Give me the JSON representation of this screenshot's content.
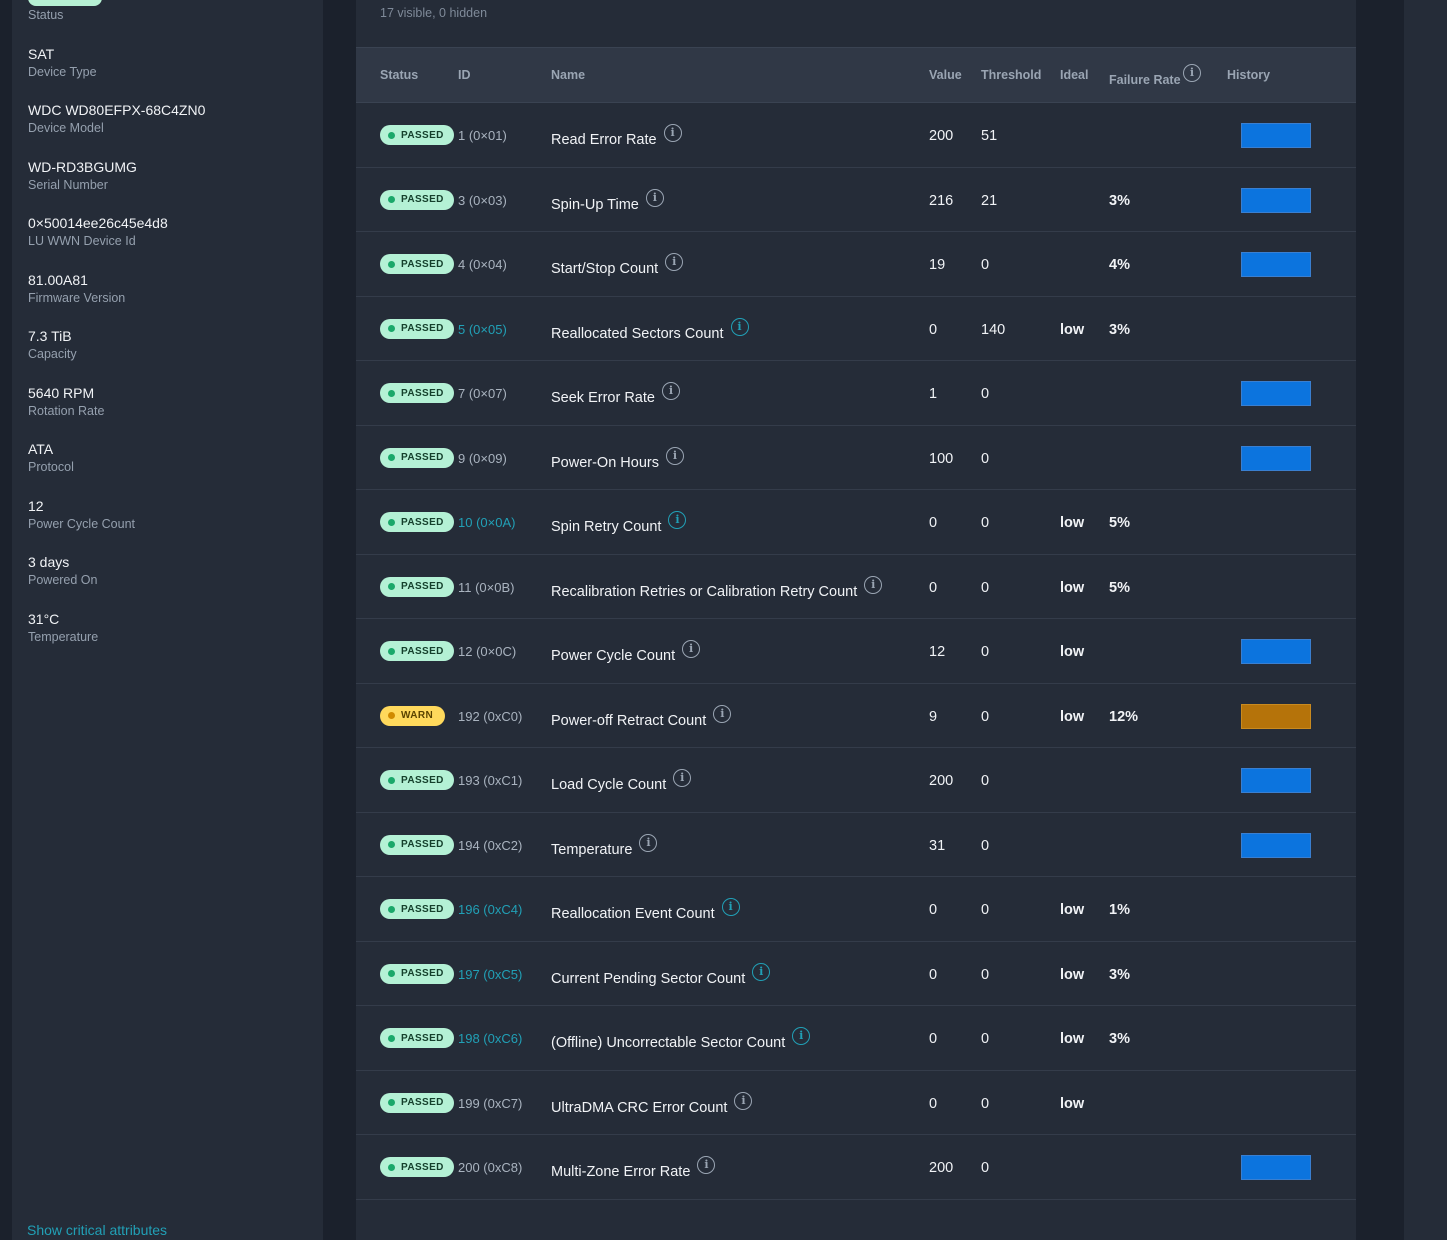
{
  "sidebar": {
    "items": [
      {
        "value": "",
        "label": "Status"
      },
      {
        "value": "SAT",
        "label": "Device Type"
      },
      {
        "value": "WDC WD80EFPX-68C4ZN0",
        "label": "Device Model"
      },
      {
        "value": "WD-RD3BGUMG",
        "label": "Serial Number"
      },
      {
        "value": "0×50014ee26c45e4d8",
        "label": "LU WWN Device Id"
      },
      {
        "value": "81.00A81",
        "label": "Firmware Version"
      },
      {
        "value": "7.3 TiB",
        "label": "Capacity"
      },
      {
        "value": "5640 RPM",
        "label": "Rotation Rate"
      },
      {
        "value": "ATA",
        "label": "Protocol"
      },
      {
        "value": "12",
        "label": "Power Cycle Count"
      },
      {
        "value": "3 days",
        "label": "Powered On"
      },
      {
        "value": "31°C",
        "label": "Temperature"
      }
    ]
  },
  "table": {
    "subtitle": "17 visible, 0 hidden",
    "headers": {
      "status": "Status",
      "id": "ID",
      "name": "Name",
      "value": "Value",
      "threshold": "Threshold",
      "ideal": "Ideal",
      "failure_rate": "Failure Rate",
      "history": "History"
    },
    "rows": [
      {
        "status": "PASSED",
        "id": "1 (0×01)",
        "id_link": false,
        "name": "Read Error Rate",
        "value": "200",
        "threshold": "51",
        "ideal": "",
        "failure_rate": "",
        "history": "blue"
      },
      {
        "status": "PASSED",
        "id": "3 (0×03)",
        "id_link": false,
        "name": "Spin-Up Time",
        "value": "216",
        "threshold": "21",
        "ideal": "",
        "failure_rate": "3%",
        "history": "blue"
      },
      {
        "status": "PASSED",
        "id": "4 (0×04)",
        "id_link": false,
        "name": "Start/Stop Count",
        "value": "19",
        "threshold": "0",
        "ideal": "",
        "failure_rate": "4%",
        "history": "blue"
      },
      {
        "status": "PASSED",
        "id": "5 (0×05)",
        "id_link": true,
        "name": "Reallocated Sectors Count",
        "value": "0",
        "threshold": "140",
        "ideal": "low",
        "failure_rate": "3%",
        "history": ""
      },
      {
        "status": "PASSED",
        "id": "7 (0×07)",
        "id_link": false,
        "name": "Seek Error Rate",
        "value": "1",
        "threshold": "0",
        "ideal": "",
        "failure_rate": "",
        "history": "blue"
      },
      {
        "status": "PASSED",
        "id": "9 (0×09)",
        "id_link": false,
        "name": "Power-On Hours",
        "value": "100",
        "threshold": "0",
        "ideal": "",
        "failure_rate": "",
        "history": "blue"
      },
      {
        "status": "PASSED",
        "id": "10 (0×0A)",
        "id_link": true,
        "name": "Spin Retry Count",
        "value": "0",
        "threshold": "0",
        "ideal": "low",
        "failure_rate": "5%",
        "history": ""
      },
      {
        "status": "PASSED",
        "id": "11 (0×0B)",
        "id_link": false,
        "name": "Recalibration Retries or Calibration Retry Count",
        "value": "0",
        "threshold": "0",
        "ideal": "low",
        "failure_rate": "5%",
        "history": ""
      },
      {
        "status": "PASSED",
        "id": "12 (0×0C)",
        "id_link": false,
        "name": "Power Cycle Count",
        "value": "12",
        "threshold": "0",
        "ideal": "low",
        "failure_rate": "",
        "history": "blue"
      },
      {
        "status": "WARN",
        "id": "192 (0xC0)",
        "id_link": false,
        "name": "Power-off Retract Count",
        "value": "9",
        "threshold": "0",
        "ideal": "low",
        "failure_rate": "12%",
        "history": "orange"
      },
      {
        "status": "PASSED",
        "id": "193 (0xC1)",
        "id_link": false,
        "name": "Load Cycle Count",
        "value": "200",
        "threshold": "0",
        "ideal": "",
        "failure_rate": "",
        "history": "blue"
      },
      {
        "status": "PASSED",
        "id": "194 (0xC2)",
        "id_link": false,
        "name": "Temperature",
        "value": "31",
        "threshold": "0",
        "ideal": "",
        "failure_rate": "",
        "history": "blue"
      },
      {
        "status": "PASSED",
        "id": "196 (0xC4)",
        "id_link": true,
        "name": "Reallocation Event Count",
        "value": "0",
        "threshold": "0",
        "ideal": "low",
        "failure_rate": "1%",
        "history": ""
      },
      {
        "status": "PASSED",
        "id": "197 (0xC5)",
        "id_link": true,
        "name": "Current Pending Sector Count",
        "value": "0",
        "threshold": "0",
        "ideal": "low",
        "failure_rate": "3%",
        "history": ""
      },
      {
        "status": "PASSED",
        "id": "198 (0xC6)",
        "id_link": true,
        "name": "(Offline) Uncorrectable Sector Count",
        "value": "0",
        "threshold": "0",
        "ideal": "low",
        "failure_rate": "3%",
        "history": ""
      },
      {
        "status": "PASSED",
        "id": "199 (0xC7)",
        "id_link": false,
        "name": "UltraDMA CRC Error Count",
        "value": "0",
        "threshold": "0",
        "ideal": "low",
        "failure_rate": "",
        "history": ""
      },
      {
        "status": "PASSED",
        "id": "200 (0xC8)",
        "id_link": false,
        "name": "Multi-Zone Error Rate",
        "value": "200",
        "threshold": "0",
        "ideal": "",
        "failure_rate": "",
        "history": "blue"
      }
    ],
    "footer_link": "Show critical attributes"
  },
  "colors": {
    "history_blue": "#0c74de",
    "history_orange": "#b5730a",
    "passed_bg": "#b4f1d5",
    "warn_bg": "#ffd95c",
    "link": "#21a0b6"
  },
  "icons": {
    "info": "info-icon"
  }
}
